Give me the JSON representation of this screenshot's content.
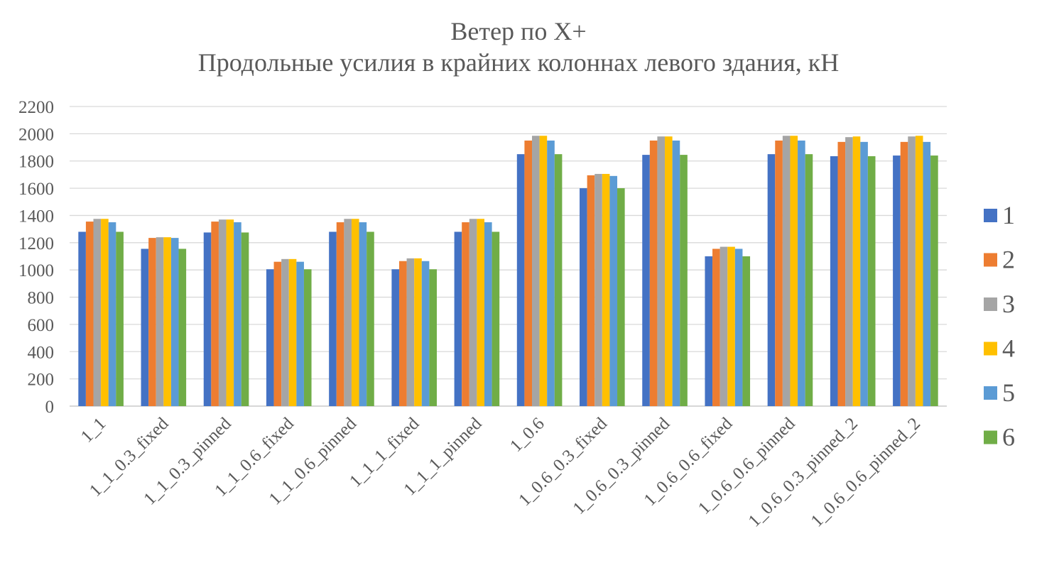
{
  "chart_data": {
    "type": "bar",
    "title": "Ветер по X+",
    "subtitle": "Продольные усилия в крайних колоннах левого здания, кН",
    "xlabel": "",
    "ylabel": "",
    "ylim": [
      0,
      2200
    ],
    "yticks": [
      0,
      200,
      400,
      600,
      800,
      1000,
      1200,
      1400,
      1600,
      1800,
      2000,
      2200
    ],
    "grid": true,
    "legend_position": "right",
    "categories": [
      "1_1",
      "1_1_0.3_fixed",
      "1_1_0.3_pinned",
      "1_1_0.6_fixed",
      "1_1_0.6_pinned",
      "1_1_1_fixed",
      "1_1_1_pinned",
      "1_0.6",
      "1_0.6_0.3_fixed",
      "1_0.6_0.3_pinned",
      "1_0.6_0.6_fixed",
      "1_0.6_0.6_pinned",
      "1_0.6_0.3_pinned_2",
      "1_0.6_0.6_pinned_2"
    ],
    "series": [
      {
        "name": "1",
        "color": "#4472C4",
        "values": [
          1280,
          1155,
          1275,
          1005,
          1280,
          1005,
          1280,
          1850,
          1600,
          1845,
          1100,
          1850,
          1835,
          1840
        ]
      },
      {
        "name": "2",
        "color": "#ED7D31",
        "values": [
          1355,
          1235,
          1355,
          1060,
          1350,
          1065,
          1350,
          1950,
          1695,
          1950,
          1155,
          1950,
          1940,
          1940
        ]
      },
      {
        "name": "3",
        "color": "#A5A5A5",
        "values": [
          1375,
          1240,
          1370,
          1080,
          1375,
          1085,
          1375,
          1985,
          1705,
          1980,
          1170,
          1985,
          1975,
          1980
        ]
      },
      {
        "name": "4",
        "color": "#FFC000",
        "values": [
          1375,
          1240,
          1370,
          1080,
          1375,
          1085,
          1375,
          1985,
          1705,
          1980,
          1170,
          1985,
          1980,
          1985
        ]
      },
      {
        "name": "5",
        "color": "#5B9BD5",
        "values": [
          1350,
          1235,
          1350,
          1060,
          1350,
          1065,
          1350,
          1950,
          1690,
          1950,
          1155,
          1950,
          1940,
          1940
        ]
      },
      {
        "name": "6",
        "color": "#70AD47",
        "values": [
          1280,
          1155,
          1275,
          1005,
          1280,
          1005,
          1280,
          1850,
          1600,
          1845,
          1100,
          1850,
          1835,
          1840
        ]
      }
    ]
  }
}
